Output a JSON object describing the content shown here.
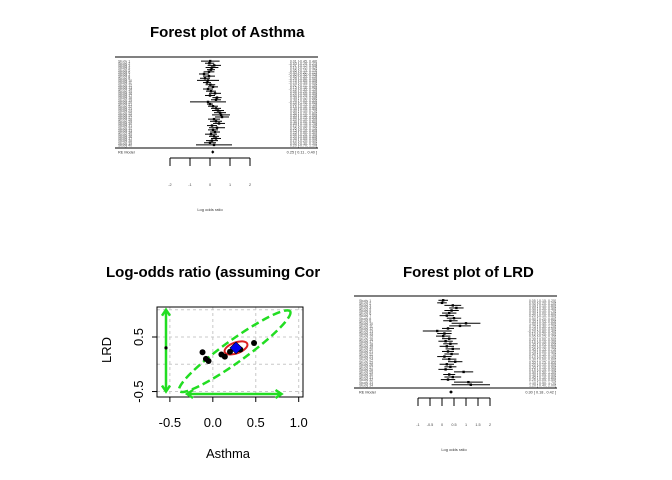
{
  "titles": {
    "forest_asthma": "Forest plot of Asthma",
    "scatter": "Log-odds ratio (assuming Cor",
    "forest_lrd": "Forest plot of LRD"
  },
  "colors": {
    "ellipse_outer": "#22dd22",
    "ellipse_inner": "#dd2222",
    "summary_point": "#0000ee",
    "grid": "#c8c8c8"
  },
  "chart_data": [
    {
      "type": "forest",
      "title": "Forest plot of Asthma",
      "xlabel": "Log odds ratio",
      "summary_label": "RE Model",
      "summary_text": "0.25 [ 0.11 , 0.40 ]",
      "xlim": [
        -2,
        2
      ],
      "ticks": [
        -2,
        -1,
        0,
        1,
        2
      ],
      "studies": [
        [
          0.01,
          -0.45,
          0.48
        ],
        [
          -0.03,
          -0.25,
          0.21
        ],
        [
          0.21,
          -0.12,
          0.55
        ],
        [
          0.1,
          -0.22,
          0.42
        ],
        [
          0.05,
          -0.15,
          0.25
        ],
        [
          -0.05,
          -0.32,
          0.22
        ],
        [
          -0.3,
          -0.55,
          -0.05
        ],
        [
          -0.05,
          -0.35,
          0.25
        ],
        [
          -0.25,
          -0.5,
          0.0
        ],
        [
          -0.1,
          -0.65,
          0.45
        ],
        [
          -0.15,
          -0.35,
          0.05
        ],
        [
          0.02,
          -0.22,
          0.26
        ],
        [
          0.15,
          -0.1,
          0.4
        ],
        [
          -0.1,
          -0.35,
          0.15
        ],
        [
          0.05,
          -0.2,
          0.3
        ],
        [
          0.25,
          -0.05,
          0.55
        ],
        [
          0.0,
          -0.25,
          0.25
        ],
        [
          0.35,
          0.12,
          0.58
        ],
        [
          0.3,
          0.05,
          0.55
        ],
        [
          -0.1,
          -1.0,
          0.8
        ],
        [
          0.0,
          -0.15,
          0.15
        ],
        [
          0.15,
          -0.1,
          0.4
        ],
        [
          0.3,
          0.05,
          0.55
        ],
        [
          0.4,
          0.1,
          0.7
        ],
        [
          0.5,
          0.2,
          0.8
        ],
        [
          0.55,
          0.1,
          1.0
        ],
        [
          0.6,
          0.25,
          0.95
        ],
        [
          0.2,
          -0.1,
          0.5
        ],
        [
          0.3,
          0.0,
          0.6
        ],
        [
          0.45,
          0.15,
          0.75
        ],
        [
          0.1,
          -0.15,
          0.35
        ],
        [
          0.35,
          -0.05,
          0.75
        ],
        [
          0.15,
          -0.1,
          0.4
        ],
        [
          0.25,
          0.0,
          0.5
        ],
        [
          0.05,
          -0.25,
          0.35
        ],
        [
          0.2,
          -0.05,
          0.45
        ],
        [
          0.3,
          0.05,
          0.55
        ],
        [
          0.1,
          -0.2,
          0.4
        ],
        [
          0.0,
          -0.3,
          0.3
        ],
        [
          0.2,
          -0.7,
          1.1
        ]
      ]
    },
    {
      "type": "scatter",
      "title": "Log-odds ratio (assuming Cor",
      "xlabel": "Asthma",
      "ylabel": "LRD",
      "xlim": [
        -0.65,
        1.05
      ],
      "ylim": [
        -0.6,
        1.05
      ],
      "xticks": [
        -0.5,
        0.0,
        0.5,
        1.0
      ],
      "xtick_labels": [
        "-0.5",
        "0.0",
        "0.5",
        "1.0"
      ],
      "yticks": [
        -0.5,
        0.5
      ],
      "ytick_labels": [
        "-0.5",
        "0.5"
      ],
      "grid": true,
      "points": [
        [
          -0.12,
          0.22
        ],
        [
          -0.08,
          0.1
        ],
        [
          -0.05,
          0.06
        ],
        [
          0.1,
          0.18
        ],
        [
          0.14,
          0.14
        ],
        [
          0.2,
          0.23
        ],
        [
          0.25,
          0.3
        ],
        [
          0.32,
          0.27
        ],
        [
          0.48,
          0.39
        ]
      ],
      "summary": [
        0.27,
        0.3
      ],
      "outer_ellipse_axis": [
        [
          -0.39,
          -0.49
        ],
        [
          0.9,
          0.97
        ]
      ],
      "inner_ellipse": {
        "center": [
          0.27,
          0.3
        ],
        "semi_x": 0.14,
        "semi_y": 0.1
      },
      "y_interval": [
        -0.5,
        1.0
      ],
      "x_interval": [
        -0.3,
        0.8
      ]
    },
    {
      "type": "forest",
      "title": "Forest plot of LRD",
      "xlabel": "Log odds ratio",
      "summary_label": "RE Model",
      "summary_text": "0.30 [ 0.18 , 0.42 ]",
      "xlim": [
        -1,
        2
      ],
      "ticks": [
        -1,
        -0.5,
        0,
        0.5,
        1,
        1.5,
        2
      ],
      "studies": [
        [
          0.05,
          -0.15,
          0.25
        ],
        [
          0.0,
          -0.2,
          0.2
        ],
        [
          0.45,
          0.1,
          0.8
        ],
        [
          0.6,
          0.3,
          0.9
        ],
        [
          0.4,
          0.1,
          0.7
        ],
        [
          0.3,
          0.0,
          0.6
        ],
        [
          0.2,
          -0.1,
          0.5
        ],
        [
          0.5,
          0.2,
          0.8
        ],
        [
          0.35,
          0.05,
          0.65
        ],
        [
          1.0,
          0.4,
          1.6
        ],
        [
          0.75,
          0.3,
          1.2
        ],
        [
          0.25,
          0.0,
          0.5
        ],
        [
          -0.2,
          -0.8,
          0.4
        ],
        [
          0.1,
          -0.2,
          0.4
        ],
        [
          0.05,
          -0.25,
          0.35
        ],
        [
          0.3,
          0.0,
          0.6
        ],
        [
          0.15,
          -0.15,
          0.45
        ],
        [
          0.35,
          0.05,
          0.65
        ],
        [
          0.2,
          -0.1,
          0.5
        ],
        [
          0.45,
          0.15,
          0.75
        ],
        [
          0.25,
          0.0,
          0.5
        ],
        [
          0.4,
          0.1,
          0.7
        ],
        [
          0.1,
          -0.2,
          0.4
        ],
        [
          0.3,
          0.0,
          0.6
        ],
        [
          0.55,
          0.25,
          0.85
        ],
        [
          0.2,
          -0.1,
          0.5
        ],
        [
          0.35,
          0.1,
          0.6
        ],
        [
          0.15,
          -0.15,
          0.45
        ],
        [
          0.9,
          0.5,
          1.3
        ],
        [
          0.3,
          0.05,
          0.55
        ],
        [
          0.45,
          0.1,
          0.8
        ],
        [
          0.25,
          -0.05,
          0.55
        ],
        [
          1.1,
          0.5,
          1.7
        ],
        [
          1.2,
          0.4,
          2.0
        ]
      ]
    }
  ]
}
